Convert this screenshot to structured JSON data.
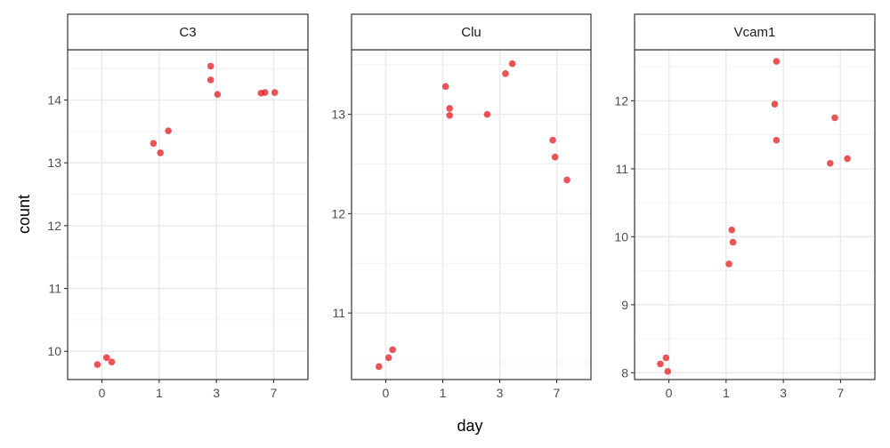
{
  "chart_data": {
    "type": "scatter",
    "layout": "facet_wrap",
    "xlabel": "day",
    "ylabel": "count",
    "x_categories": [
      "0",
      "1",
      "3",
      "7"
    ],
    "point_color": "#E41A1C",
    "grid": true,
    "theme": "bw",
    "facets": [
      {
        "name": "C3",
        "ylim": [
          9.55,
          14.8
        ],
        "yticks": [
          10,
          11,
          12,
          13,
          14
        ],
        "points": [
          {
            "day": "0",
            "offset": -0.08,
            "y": 9.79
          },
          {
            "day": "0",
            "offset": 0.08,
            "y": 9.9
          },
          {
            "day": "0",
            "offset": 0.17,
            "y": 9.83
          },
          {
            "day": "1",
            "offset": -0.1,
            "y": 13.31
          },
          {
            "day": "1",
            "offset": 0.02,
            "y": 13.16
          },
          {
            "day": "1",
            "offset": 0.16,
            "y": 13.51
          },
          {
            "day": "3",
            "offset": -0.1,
            "y": 14.54
          },
          {
            "day": "3",
            "offset": -0.1,
            "y": 14.32
          },
          {
            "day": "3",
            "offset": 0.02,
            "y": 14.09
          },
          {
            "day": "7",
            "offset": -0.22,
            "y": 14.11
          },
          {
            "day": "7",
            "offset": -0.15,
            "y": 14.12
          },
          {
            "day": "7",
            "offset": 0.02,
            "y": 14.12
          }
        ]
      },
      {
        "name": "Clu",
        "ylim": [
          10.33,
          13.65
        ],
        "yticks": [
          11,
          12,
          13
        ],
        "points": [
          {
            "day": "0",
            "offset": -0.12,
            "y": 10.46
          },
          {
            "day": "0",
            "offset": 0.05,
            "y": 10.55
          },
          {
            "day": "0",
            "offset": 0.12,
            "y": 10.63
          },
          {
            "day": "1",
            "offset": 0.05,
            "y": 13.28
          },
          {
            "day": "1",
            "offset": 0.12,
            "y": 13.06
          },
          {
            "day": "1",
            "offset": 0.12,
            "y": 12.99
          },
          {
            "day": "3",
            "offset": -0.22,
            "y": 13.0
          },
          {
            "day": "3",
            "offset": 0.1,
            "y": 13.41
          },
          {
            "day": "3",
            "offset": 0.22,
            "y": 13.51
          },
          {
            "day": "7",
            "offset": -0.07,
            "y": 12.74
          },
          {
            "day": "7",
            "offset": -0.03,
            "y": 12.57
          },
          {
            "day": "7",
            "offset": 0.18,
            "y": 12.34
          }
        ]
      },
      {
        "name": "Vcam1",
        "ylim": [
          7.9,
          12.75
        ],
        "yticks": [
          8,
          9,
          10,
          11,
          12
        ],
        "points": [
          {
            "day": "0",
            "offset": -0.15,
            "y": 8.13
          },
          {
            "day": "0",
            "offset": -0.05,
            "y": 8.22
          },
          {
            "day": "0",
            "offset": -0.02,
            "y": 8.02
          },
          {
            "day": "1",
            "offset": 0.05,
            "y": 9.6
          },
          {
            "day": "1",
            "offset": 0.1,
            "y": 10.1
          },
          {
            "day": "1",
            "offset": 0.12,
            "y": 9.92
          },
          {
            "day": "3",
            "offset": -0.15,
            "y": 11.95
          },
          {
            "day": "3",
            "offset": -0.12,
            "y": 12.58
          },
          {
            "day": "3",
            "offset": -0.12,
            "y": 11.42
          },
          {
            "day": "7",
            "offset": -0.18,
            "y": 11.08
          },
          {
            "day": "7",
            "offset": -0.1,
            "y": 11.75
          },
          {
            "day": "7",
            "offset": 0.12,
            "y": 11.15
          }
        ]
      }
    ]
  }
}
